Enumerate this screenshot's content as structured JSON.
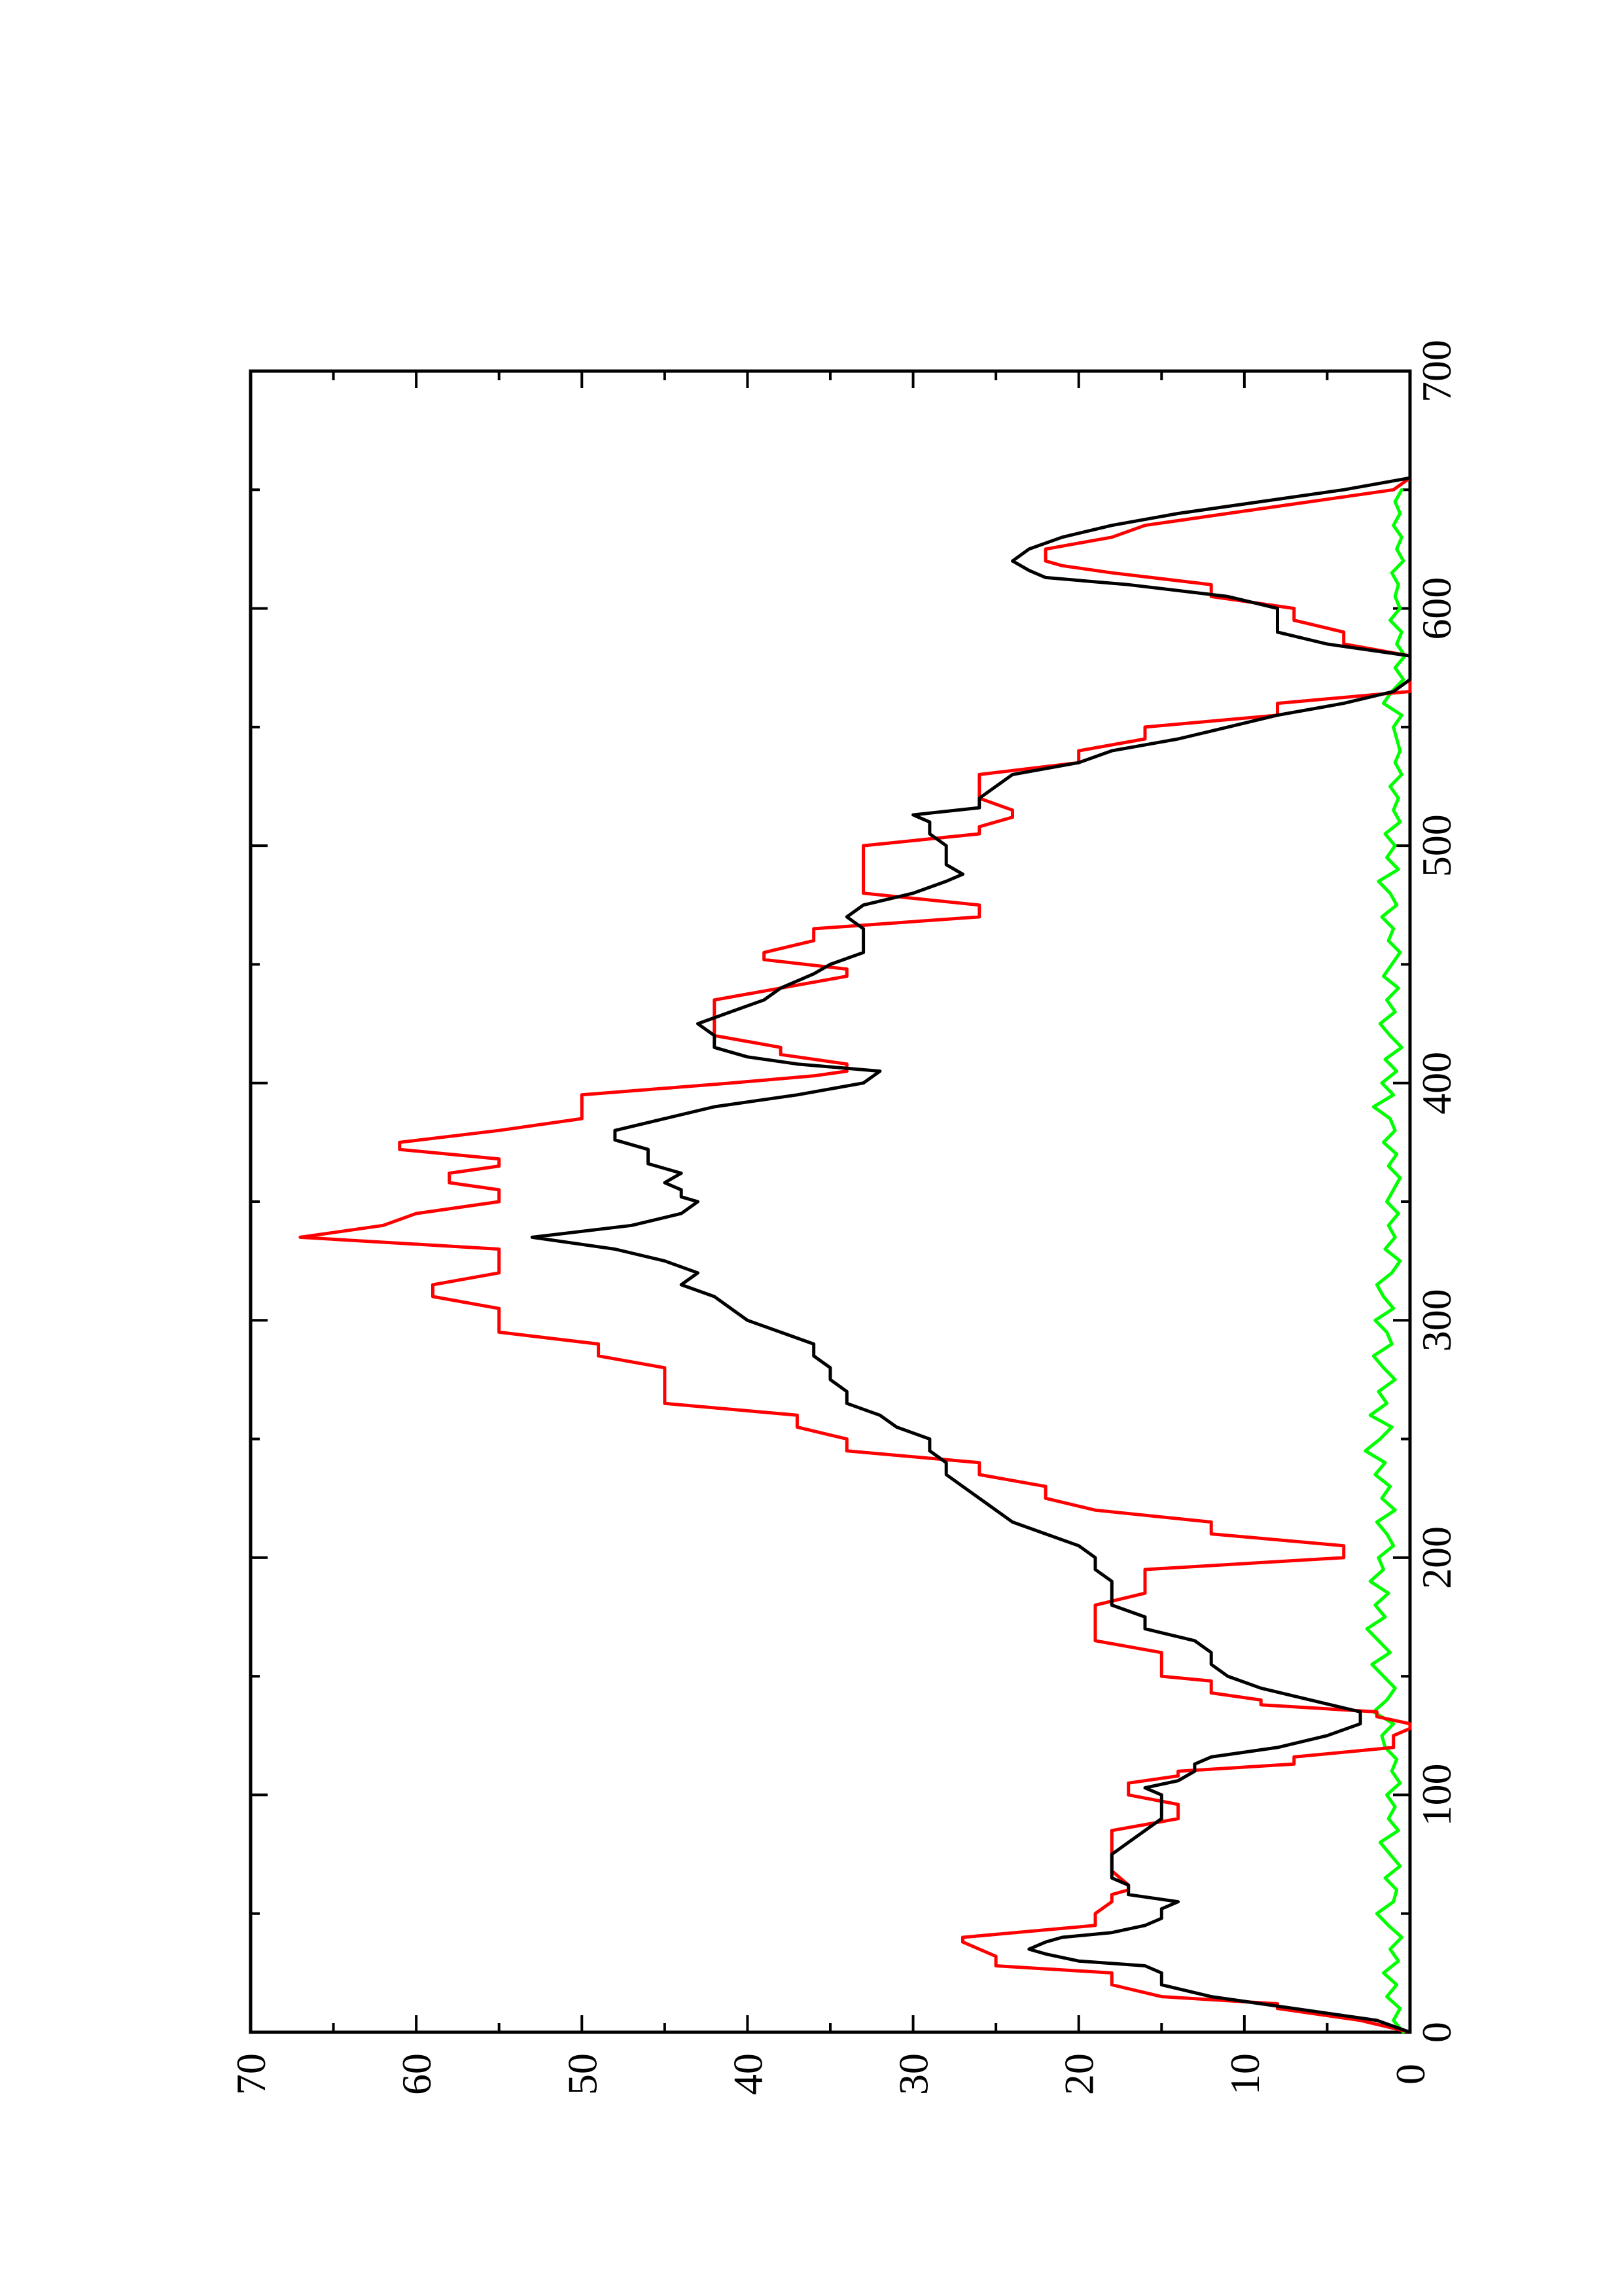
{
  "chart_data": {
    "type": "line",
    "title": "",
    "xlabel": "",
    "ylabel": "",
    "xlim": [
      0,
      700
    ],
    "ylim": [
      0,
      70
    ],
    "x_ticks": [
      0,
      100,
      200,
      300,
      400,
      500,
      600,
      700
    ],
    "y_ticks": [
      0,
      10,
      20,
      30,
      40,
      50,
      60,
      70
    ],
    "x_tick_labels": [
      "0",
      "100",
      "200",
      "300",
      "400",
      "500",
      "600",
      "700"
    ],
    "y_tick_labels": [
      "0",
      "10",
      "20",
      "30",
      "40",
      "50",
      "60",
      "70"
    ],
    "grid": false,
    "legend": "none",
    "orientation": "rotated 90° counter-clockwise on page",
    "series": [
      {
        "color": "#ff0000",
        "style": "step",
        "x": [
          0,
          5,
          10,
          12,
          15,
          20,
          25,
          28,
          32,
          38,
          40,
          45,
          50,
          55,
          58,
          60,
          62,
          68,
          70,
          75,
          80,
          85,
          90,
          93,
          96,
          100,
          105,
          108,
          110,
          113,
          116,
          120,
          123,
          125,
          128,
          130,
          133,
          135,
          138,
          140,
          143,
          145,
          148,
          150,
          155,
          160,
          165,
          170,
          175,
          180,
          185,
          190,
          195,
          200,
          205,
          210,
          215,
          220,
          225,
          230,
          235,
          240,
          245,
          250,
          255,
          260,
          265,
          270,
          275,
          280,
          285,
          290,
          295,
          300,
          305,
          310,
          315,
          320,
          325,
          330,
          335,
          340,
          345,
          350,
          355,
          358,
          362,
          365,
          368,
          372,
          375,
          380,
          385,
          390,
          395,
          400,
          403,
          405,
          408,
          412,
          415,
          420,
          425,
          430,
          435,
          440,
          445,
          448,
          452,
          455,
          460,
          465,
          470,
          475,
          480,
          485,
          490,
          495,
          500,
          505,
          508,
          512,
          515,
          520,
          525,
          530,
          535,
          540,
          545,
          550,
          555,
          560,
          565,
          570,
          575,
          580,
          585,
          590,
          595,
          600,
          605,
          610,
          615,
          618,
          620,
          625,
          630,
          635,
          640,
          645,
          650,
          655
        ],
        "y": [
          0,
          3,
          8,
          8,
          15,
          18,
          18,
          25,
          25,
          27,
          27,
          19,
          19,
          18,
          18,
          17,
          17,
          18,
          18,
          18,
          18,
          18,
          14,
          14,
          14,
          17,
          17,
          14,
          14,
          7,
          7,
          1,
          1,
          1,
          0,
          0,
          2,
          2,
          9,
          9,
          12,
          12,
          12,
          15,
          15,
          15,
          19,
          19,
          19,
          19,
          16,
          16,
          16,
          4,
          4,
          12,
          12,
          19,
          22,
          22,
          26,
          26,
          34,
          34,
          37,
          37,
          45,
          45,
          45,
          45,
          49,
          49,
          55,
          55,
          55,
          59,
          59,
          55,
          55,
          55,
          67,
          62,
          60,
          55,
          55,
          58,
          58,
          55,
          55,
          61,
          61,
          55,
          50,
          50,
          50,
          41,
          36,
          34,
          34,
          38,
          38,
          42,
          42,
          42,
          42,
          38,
          34,
          34,
          39,
          39,
          36,
          36,
          26,
          26,
          33,
          33,
          33,
          33,
          33,
          26,
          26,
          24,
          24,
          26,
          26,
          26,
          20,
          20,
          16,
          16,
          8,
          8,
          0,
          0,
          0,
          0,
          4,
          4,
          7,
          7,
          12,
          12,
          18,
          21,
          22,
          22,
          18,
          16,
          11,
          6,
          1,
          0
        ]
      },
      {
        "color": "#000000",
        "style": "line",
        "x": [
          0,
          5,
          10,
          15,
          20,
          25,
          28,
          30,
          33,
          35,
          38,
          40,
          42,
          45,
          48,
          50,
          52,
          55,
          58,
          60,
          62,
          65,
          68,
          70,
          75,
          80,
          85,
          90,
          95,
          100,
          103,
          106,
          110,
          113,
          116,
          120,
          125,
          130,
          135,
          140,
          145,
          150,
          155,
          160,
          165,
          170,
          175,
          180,
          185,
          190,
          195,
          200,
          205,
          210,
          215,
          220,
          225,
          230,
          235,
          240,
          245,
          250,
          255,
          260,
          265,
          270,
          275,
          280,
          285,
          290,
          295,
          300,
          305,
          310,
          315,
          320,
          325,
          330,
          335,
          340,
          345,
          350,
          352,
          355,
          358,
          362,
          366,
          370,
          372,
          376,
          380,
          385,
          390,
          395,
          400,
          405,
          408,
          411,
          415,
          420,
          425,
          430,
          435,
          440,
          443,
          446,
          450,
          455,
          460,
          465,
          470,
          475,
          480,
          485,
          488,
          492,
          496,
          500,
          505,
          510,
          513,
          516,
          520,
          525,
          530,
          535,
          540,
          545,
          550,
          555,
          560,
          565,
          570,
          575,
          580,
          585,
          590,
          595,
          600,
          605,
          610,
          613,
          616,
          620,
          625,
          630,
          635,
          640,
          645,
          650,
          655
        ],
        "y": [
          0,
          2,
          7,
          12,
          15,
          15,
          16,
          20,
          22,
          23,
          22,
          21,
          18,
          16,
          15,
          15,
          15,
          14,
          17,
          17,
          17,
          18,
          18,
          18,
          18,
          17,
          16,
          15,
          15,
          15,
          16,
          14,
          13,
          13,
          12,
          8,
          5,
          3,
          3,
          6,
          9,
          11,
          12,
          12,
          13,
          16,
          16,
          18,
          18,
          18,
          19,
          19,
          20,
          22,
          24,
          25,
          26,
          27,
          28,
          28,
          29,
          29,
          31,
          32,
          34,
          34,
          35,
          35,
          36,
          36,
          38,
          40,
          41,
          42,
          44,
          43,
          45,
          48,
          53,
          47,
          44,
          43,
          44,
          44,
          45,
          44,
          46,
          46,
          46,
          48,
          48,
          45,
          42,
          37,
          33,
          32,
          37,
          40,
          42,
          42,
          43,
          41,
          39,
          38,
          37,
          36,
          35,
          33,
          33,
          33,
          34,
          33,
          30,
          28,
          27,
          28,
          28,
          28,
          29,
          29,
          30,
          26,
          26,
          25,
          24,
          20,
          18,
          14,
          11,
          8,
          4,
          1,
          0,
          0,
          0,
          5,
          8,
          8,
          8,
          11,
          17,
          22,
          23,
          24,
          23,
          21,
          18,
          14,
          9,
          4,
          0
        ]
      },
      {
        "color": "#00ff00",
        "style": "line",
        "x": [
          0,
          5,
          10,
          15,
          20,
          25,
          30,
          35,
          40,
          45,
          50,
          55,
          60,
          65,
          70,
          75,
          80,
          85,
          90,
          95,
          100,
          105,
          110,
          115,
          120,
          125,
          130,
          135,
          140,
          145,
          150,
          155,
          160,
          165,
          170,
          175,
          180,
          185,
          190,
          195,
          200,
          205,
          210,
          215,
          220,
          225,
          230,
          235,
          240,
          245,
          250,
          255,
          260,
          265,
          270,
          275,
          280,
          285,
          290,
          295,
          300,
          305,
          310,
          315,
          320,
          325,
          330,
          335,
          340,
          345,
          350,
          355,
          360,
          365,
          370,
          375,
          380,
          385,
          390,
          395,
          400,
          405,
          410,
          415,
          420,
          425,
          430,
          435,
          440,
          445,
          450,
          455,
          460,
          465,
          470,
          475,
          480,
          485,
          490,
          495,
          500,
          505,
          510,
          515,
          520,
          525,
          530,
          535,
          540,
          545,
          550,
          555,
          560,
          565,
          570,
          575,
          580,
          585,
          590,
          595,
          600,
          605,
          610,
          615,
          620,
          625,
          630,
          635,
          640,
          645,
          650
        ],
        "y": [
          0.4,
          1.0,
          0.6,
          1.4,
          0.8,
          1.6,
          0.7,
          1.2,
          0.5,
          1.3,
          2.0,
          1.0,
          0.8,
          1.5,
          0.6,
          1.2,
          1.8,
          0.7,
          1.3,
          0.9,
          1.4,
          0.6,
          1.1,
          0.8,
          1.5,
          1.7,
          1.0,
          2.2,
          1.4,
          0.9,
          1.6,
          2.3,
          1.2,
          1.9,
          2.6,
          1.5,
          2.1,
          1.3,
          2.4,
          1.6,
          1.9,
          1.0,
          1.4,
          2.0,
          0.9,
          1.7,
          1.2,
          2.1,
          1.5,
          2.7,
          1.8,
          1.1,
          2.4,
          1.4,
          1.9,
          0.9,
          1.6,
          2.2,
          1.1,
          1.4,
          2.1,
          1.0,
          1.6,
          2.0,
          1.1,
          0.6,
          1.5,
          0.9,
          1.3,
          0.7,
          1.4,
          1.0,
          0.6,
          1.3,
          0.8,
          1.6,
          0.9,
          1.2,
          2.2,
          1.0,
          1.7,
          0.8,
          1.5,
          0.5,
          1.2,
          1.8,
          0.9,
          1.4,
          0.7,
          1.6,
          1.1,
          0.6,
          1.3,
          1.0,
          1.7,
          0.8,
          1.2,
          1.9,
          0.7,
          1.4,
          0.9,
          1.5,
          0.6,
          1.0,
          0.7,
          1.2,
          0.5,
          0.9,
          0.6,
          0.8,
          1.0,
          0.5,
          1.6,
          1.1,
          0.4,
          0.9,
          0.3,
          0.8,
          0.5,
          1.2,
          0.6,
          0.9,
          0.7,
          1.1,
          0.4,
          0.8,
          0.5,
          1.0,
          0.6,
          0.9,
          0.5
        ]
      }
    ]
  }
}
